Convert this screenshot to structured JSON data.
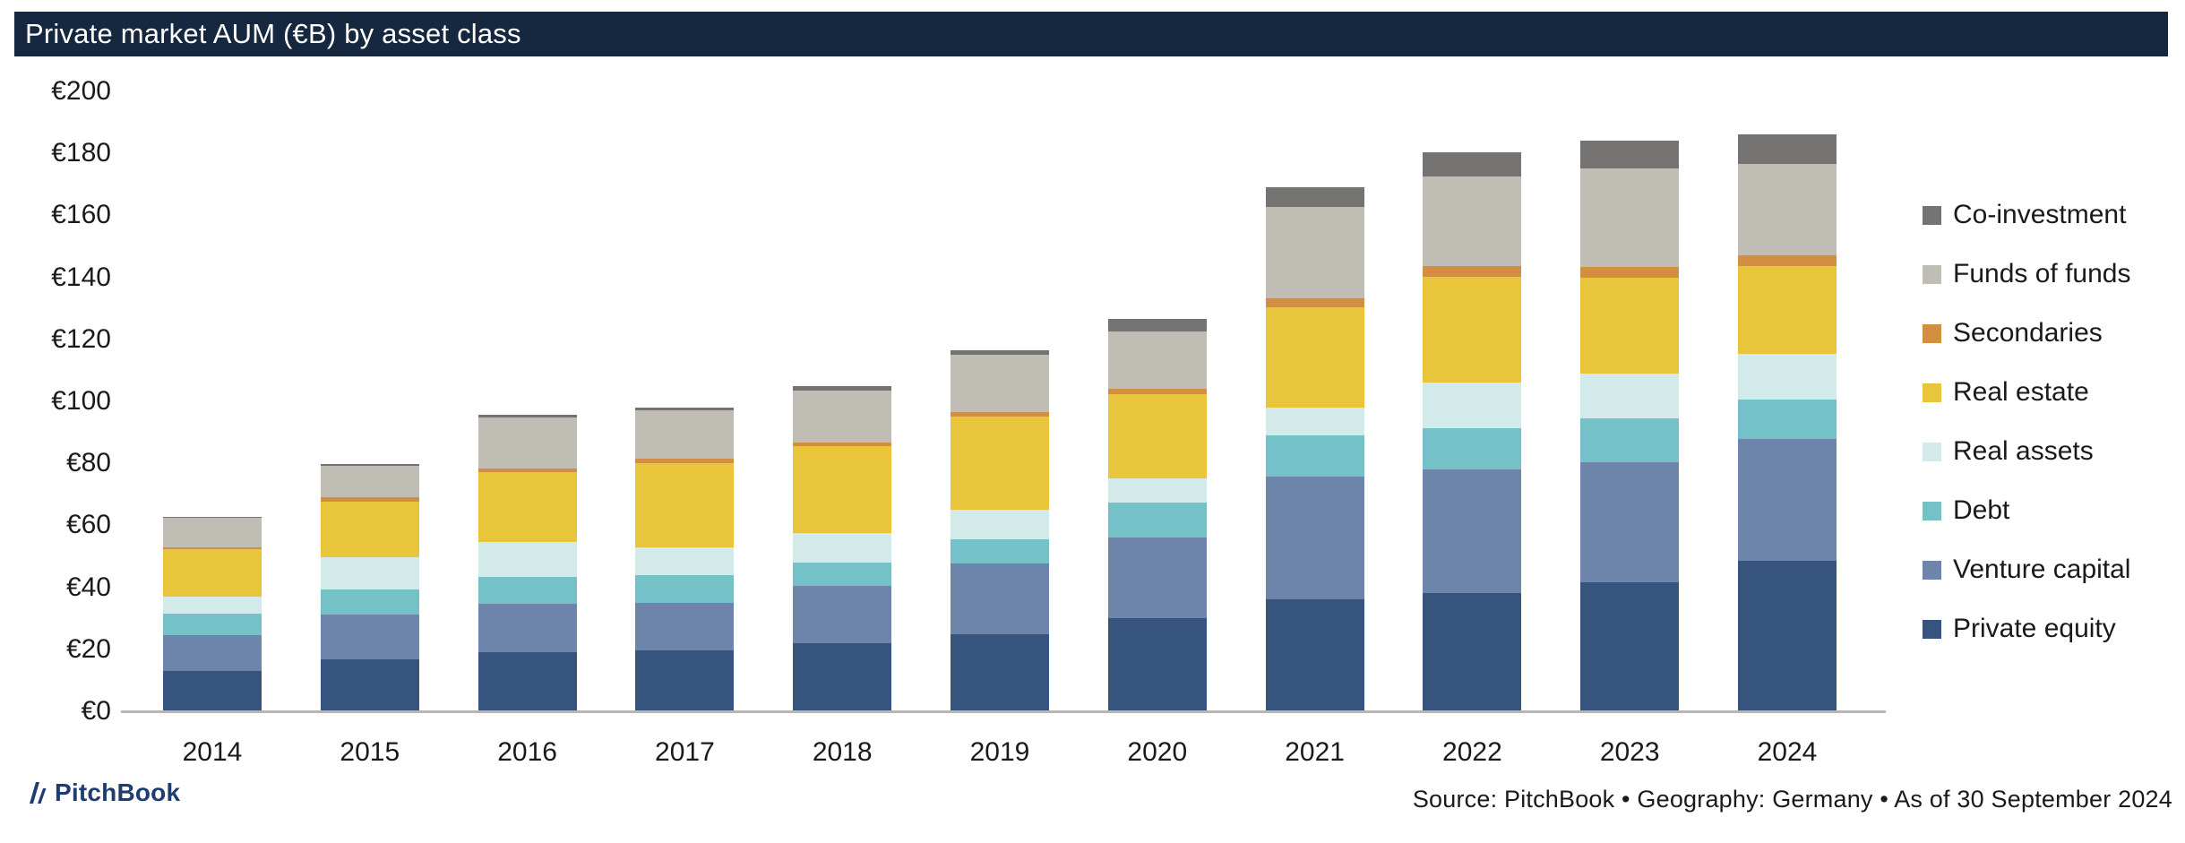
{
  "header": {
    "title": "Private market AUM (€B) by asset class"
  },
  "chart_data": {
    "type": "bar",
    "stacked": true,
    "title": "Private market AUM (€B) by asset class",
    "categories": [
      "2014",
      "2015",
      "2016",
      "2017",
      "2018",
      "2019",
      "2020",
      "2021",
      "2022",
      "2023",
      "2024"
    ],
    "series": [
      {
        "name": "Private equity",
        "color": "#36547e",
        "values": [
          13.0,
          16.9,
          19.0,
          19.7,
          21.9,
          24.8,
          30.1,
          36.1,
          38.2,
          41.6,
          48.6
        ]
      },
      {
        "name": "Venture capital",
        "color": "#6d85aa",
        "values": [
          11.6,
          14.3,
          15.7,
          15.2,
          18.6,
          22.9,
          26.1,
          39.7,
          39.8,
          38.8,
          39.3
        ]
      },
      {
        "name": "Debt",
        "color": "#74c2c8",
        "values": [
          6.9,
          8.0,
          8.7,
          9.1,
          7.6,
          7.8,
          11.0,
          13.2,
          13.2,
          14.0,
          12.7
        ]
      },
      {
        "name": "Real assets",
        "color": "#d2eaea",
        "values": [
          5.6,
          10.4,
          11.2,
          9.0,
          9.4,
          9.5,
          7.9,
          9.0,
          14.8,
          14.6,
          14.7
        ]
      },
      {
        "name": "Real estate",
        "color": "#e9c53b",
        "values": [
          15.1,
          18.1,
          22.7,
          27.1,
          28.0,
          30.2,
          27.3,
          32.4,
          34.1,
          30.9,
          28.3
        ]
      },
      {
        "name": "Secondaries",
        "color": "#d28e41",
        "values": [
          0.7,
          1.4,
          0.9,
          1.3,
          1.2,
          1.2,
          1.6,
          2.7,
          3.6,
          3.4,
          3.6
        ]
      },
      {
        "name": "Funds of funds",
        "color": "#c0bdb5",
        "values": [
          9.4,
          10.1,
          16.7,
          15.6,
          16.9,
          18.5,
          18.6,
          29.7,
          28.9,
          31.8,
          29.4
        ]
      },
      {
        "name": "Co-investment",
        "color": "#757272",
        "values": [
          0.5,
          0.7,
          0.7,
          1.0,
          1.2,
          1.7,
          4.0,
          6.4,
          7.7,
          9.1,
          9.6
        ]
      }
    ],
    "series_order": "bottom-to-top",
    "legend_order_top_to_bottom": [
      "Co-investment",
      "Funds of funds",
      "Secondaries",
      "Real estate",
      "Real assets",
      "Debt",
      "Venture capital",
      "Private equity"
    ],
    "xlabel": "",
    "ylabel": "",
    "y_tick_prefix": "€",
    "y_tick_labels": [
      "€0",
      "€20",
      "€40",
      "€60",
      "€80",
      "€100",
      "€120",
      "€140",
      "€160",
      "€180",
      "€200"
    ],
    "ylim": [
      0,
      200
    ],
    "y_tick_step": 20,
    "grid": false,
    "legend_position": "right"
  },
  "footer": {
    "logo_icon": "pitchbook-mark",
    "logo_text": "PitchBook",
    "source": "Source: PitchBook • Geography: Germany • As of 30 September 2024"
  },
  "colors": {
    "header_bg": "#16283f",
    "header_text": "#ffffff",
    "axis_line": "#b9b7b4",
    "text": "#1a1a1a",
    "logo": "#1f3e70"
  }
}
